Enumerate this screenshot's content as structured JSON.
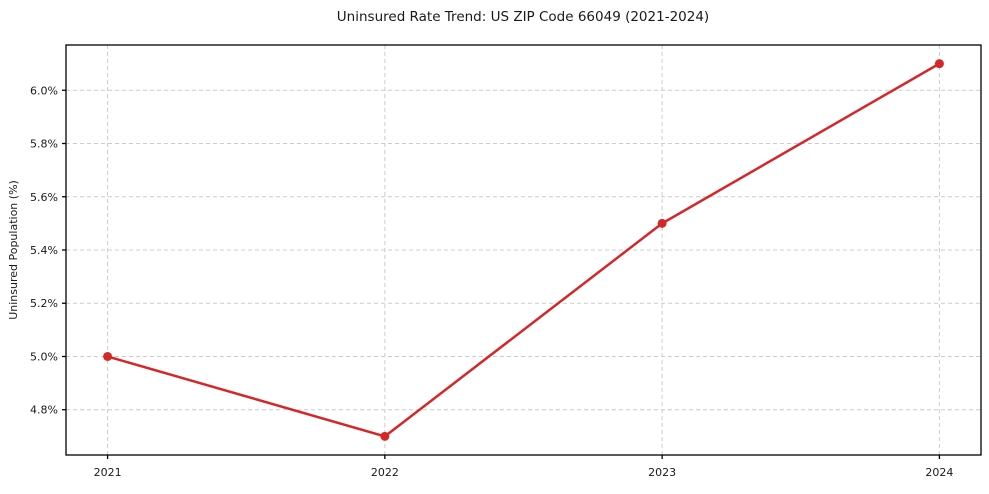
{
  "chart_data": {
    "type": "line",
    "title": "Uninsured Rate Trend: US ZIP Code 66049 (2021-2024)",
    "xlabel": "",
    "ylabel": "Uninsured Population (%)",
    "x": [
      2021,
      2022,
      2023,
      2024
    ],
    "x_tick_labels": [
      "2021",
      "2022",
      "2023",
      "2024"
    ],
    "series": [
      {
        "name": "uninsured-rate",
        "values": [
          5.0,
          4.7,
          5.5,
          6.1
        ]
      }
    ],
    "y_ticks": [
      4.8,
      5.0,
      5.2,
      5.4,
      5.6,
      5.8,
      6.0
    ],
    "y_tick_labels": [
      "4.8%",
      "5.0%",
      "5.2%",
      "5.4%",
      "5.6%",
      "5.8%",
      "6.0%"
    ],
    "xlim": [
      2020.85,
      2024.15
    ],
    "ylim": [
      4.63,
      6.17
    ],
    "grid": true,
    "grid_style": "dashed",
    "legend": "none",
    "colors": {
      "line": "#d62728",
      "marker": "#d62728",
      "grid": "#cccccc",
      "spine": "#000000",
      "text": "#1a1a1a",
      "background": "#ffffff"
    }
  }
}
